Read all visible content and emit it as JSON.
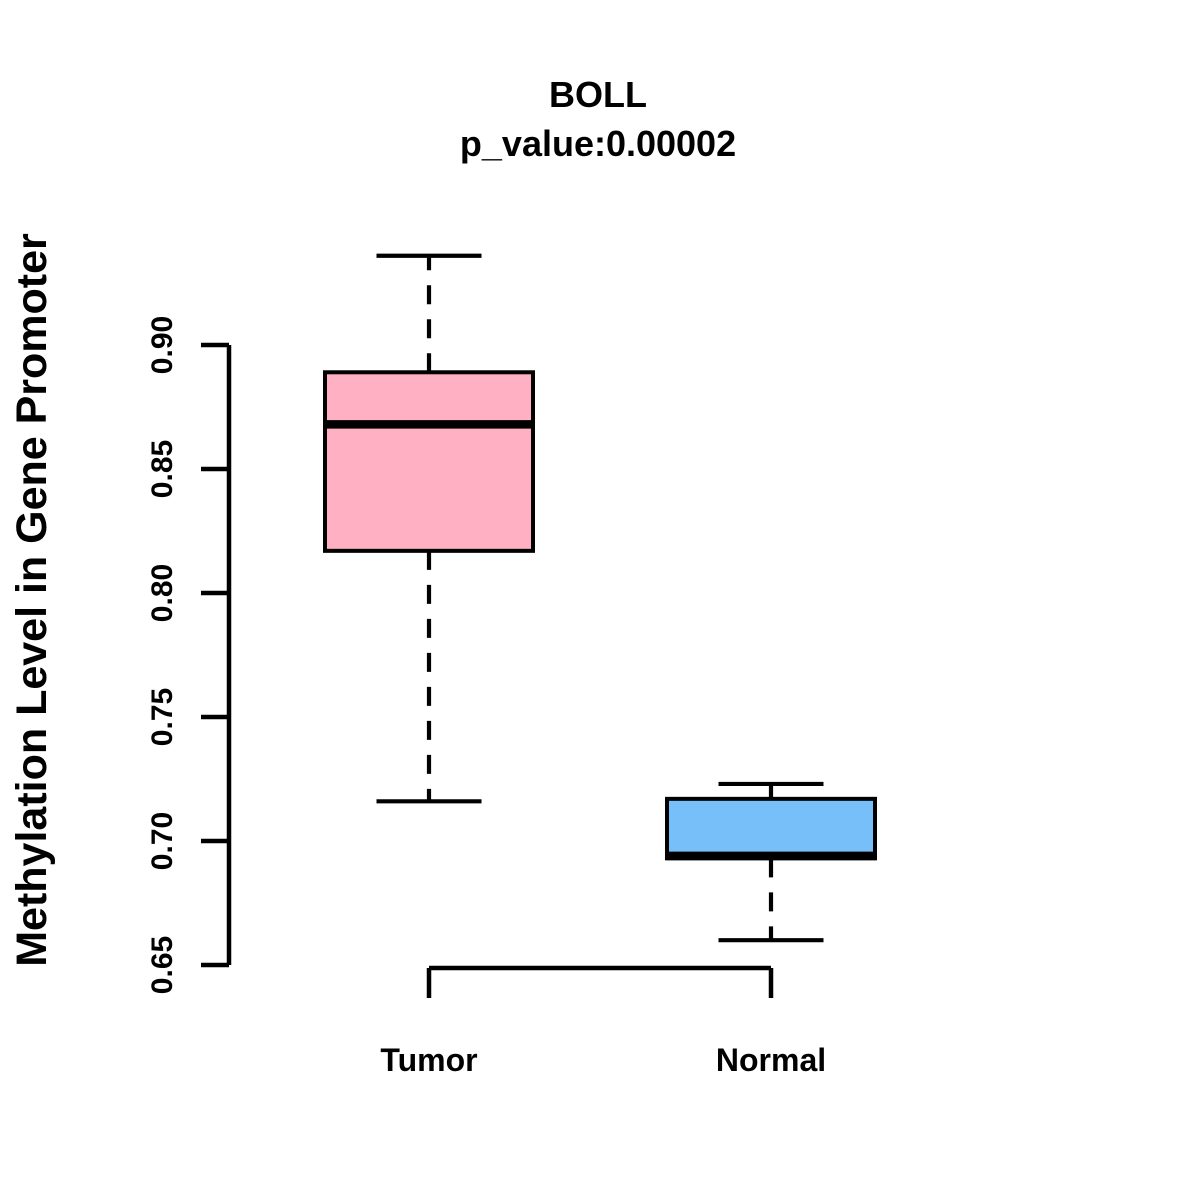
{
  "chart_data": {
    "type": "boxplot",
    "title": "BOLL",
    "subtitle": "p_value:0.00002",
    "ylabel": "Methylation Level in Gene Promoter",
    "xlabel": "",
    "categories": [
      "Tumor",
      "Normal"
    ],
    "y_axis": {
      "ticks": [
        0.9,
        0.85,
        0.8,
        0.75,
        0.7,
        0.65
      ],
      "range": [
        0.65,
        0.9
      ],
      "tick_label_format": "2dp"
    },
    "series": [
      {
        "name": "Tumor",
        "box_color": "#FFB0C2",
        "whisker_low": 0.716,
        "q1": 0.817,
        "median": 0.868,
        "q3": 0.889,
        "whisker_high": 0.936
      },
      {
        "name": "Normal",
        "box_color": "#76BFF8",
        "whisker_low": 0.66,
        "q1": 0.693,
        "median": 0.694,
        "q3": 0.717,
        "whisker_high": 0.723
      }
    ],
    "line_color": "#000000",
    "background_color": "#FFFFFF",
    "legend": "none",
    "grid": false
  }
}
